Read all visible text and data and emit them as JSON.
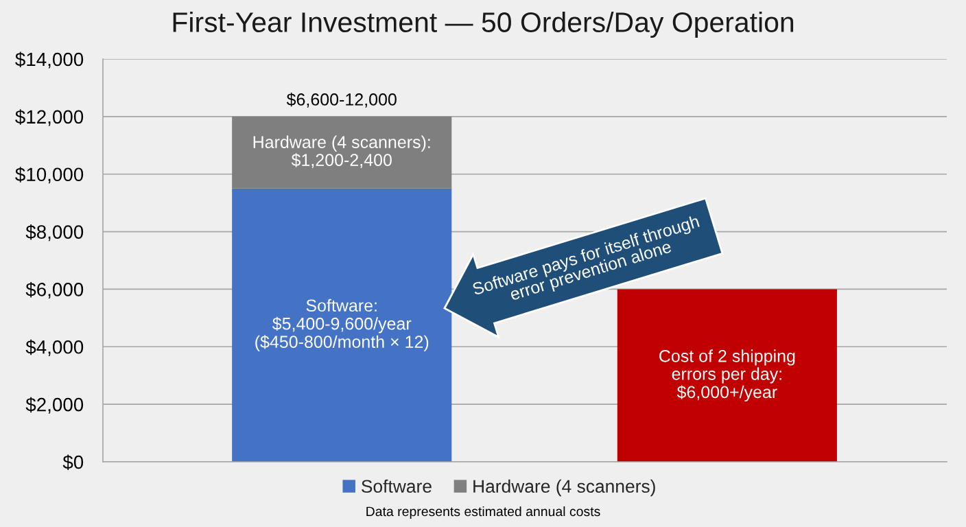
{
  "chart_data": {
    "type": "bar",
    "title": "First-Year Investment — 50 Orders/Day Operation",
    "categories": [
      null,
      null
    ],
    "stacked": true,
    "series": [
      {
        "name": "Software",
        "color": "#4472c4",
        "values": [
          9500,
          null
        ],
        "value_labels": [
          "Software:\n$5,400-9,600/year\n($450-800/month × 12)",
          null
        ]
      },
      {
        "name": "Hardware (4 scanners)",
        "color": "#7f7f7f",
        "values": [
          2500,
          null
        ],
        "value_labels": [
          "Hardware (4 scanners):\n$1,200-2,400",
          null
        ]
      },
      {
        "color": "#c00000",
        "values": [
          null,
          6000
        ],
        "value_labels": [
          null,
          "Cost of 2 shipping\nerrors per day:\n$6,000+/year"
        ]
      }
    ],
    "totals": [
      "$6,600-12,000",
      null
    ],
    "ylim": [
      0,
      14000
    ],
    "yticks": [
      {
        "value": 0,
        "label": "$0"
      },
      {
        "value": 2000,
        "label": "$2,000"
      },
      {
        "value": 4000,
        "label": "$4,000"
      },
      {
        "value": 6000,
        "label": "$6,000"
      },
      {
        "value": 8000,
        "label": "$8,000"
      },
      {
        "value": 10000,
        "label": "$10,000"
      },
      {
        "value": 12000,
        "label": "$12,000"
      },
      {
        "value": 14000,
        "label": "$14,000"
      }
    ],
    "grid": "y",
    "legend": "bottom",
    "annotations": [
      "Software pays for itself through\nerror prevention alone",
      "Data represents estimated annual costs"
    ]
  }
}
